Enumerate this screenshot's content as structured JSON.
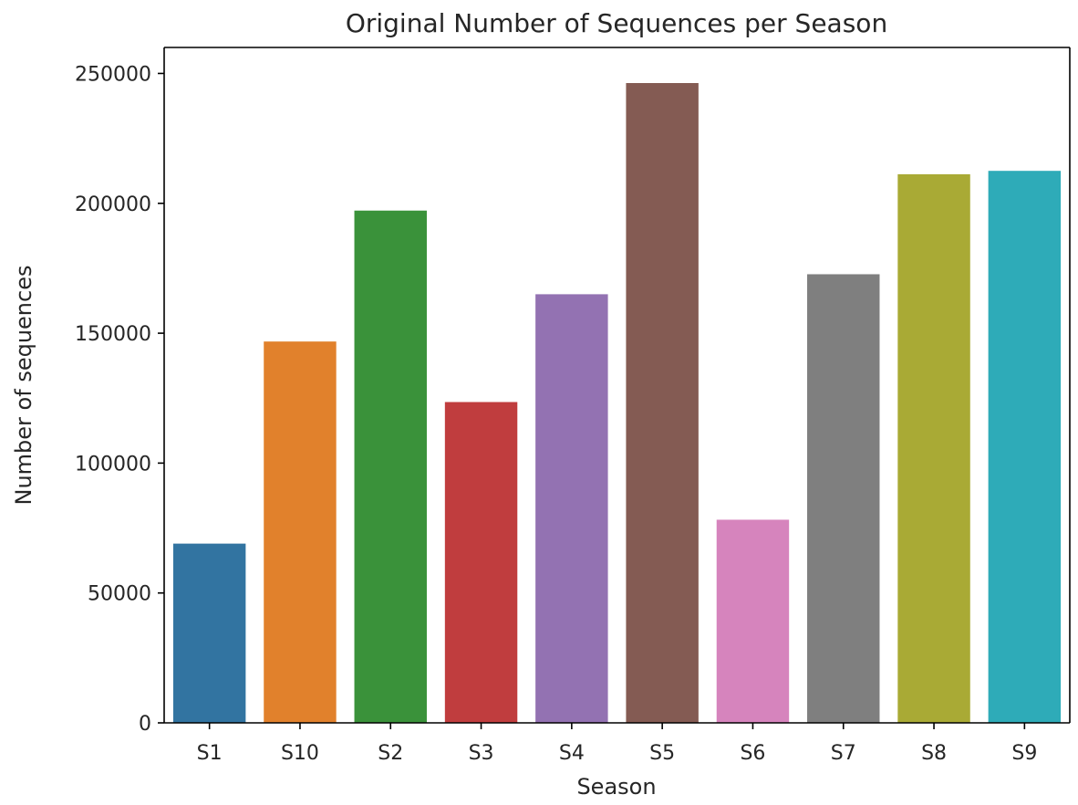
{
  "chart_data": {
    "type": "bar",
    "title": "Original Number of Sequences per Season",
    "xlabel": "Season",
    "ylabel": "Number of sequences",
    "categories": [
      "S1",
      "S10",
      "S2",
      "S3",
      "S4",
      "S5",
      "S6",
      "S7",
      "S8",
      "S9"
    ],
    "values": [
      69000,
      146800,
      197200,
      123500,
      165000,
      246300,
      78200,
      172700,
      211200,
      212500
    ],
    "colors": [
      "#3274a1",
      "#e1812c",
      "#3a923a",
      "#c03d3e",
      "#9372b2",
      "#845b53",
      "#d684bd",
      "#7f7f7f",
      "#a9aa35",
      "#2eabb8"
    ],
    "ylim": [
      0,
      260000
    ],
    "yticks": [
      0,
      50000,
      100000,
      150000,
      200000,
      250000
    ],
    "ytick_labels": [
      "0",
      "50000",
      "100000",
      "150000",
      "200000",
      "250000"
    ],
    "grid": false,
    "legend": "none"
  }
}
